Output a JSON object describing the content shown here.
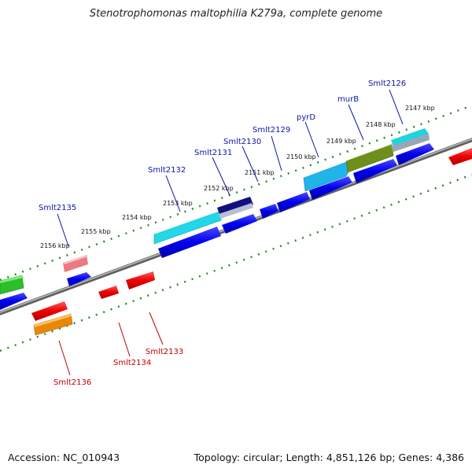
{
  "title": "Stenotrophomonas maltophilia K279a, complete genome",
  "footer": {
    "accession": "Accession: NC_010943",
    "stats": "Topology: circular; Length: 4,851,126 bp; Genes: 4,386"
  },
  "colors": {
    "forward_label": "#0a14a8",
    "reverse_label": "#c00000",
    "backbone": "#808080",
    "tick": "#2e8b2e"
  },
  "kbp_labels": [
    "2147 kbp",
    "2148 kbp",
    "2149 kbp",
    "2150 kbp",
    "2151 kbp",
    "2152 kbp",
    "2153 kbp",
    "2154 kbp",
    "2155 kbp",
    "2156 kbp"
  ],
  "forward_labels": [
    "Smlt2126",
    "murB",
    "pyrD",
    "Smlt2129",
    "Smlt2130",
    "Smlt2131",
    "Smlt2132",
    "Smlt2135"
  ],
  "reverse_labels": [
    "Smlt2133",
    "Smlt2134",
    "Smlt2136"
  ]
}
